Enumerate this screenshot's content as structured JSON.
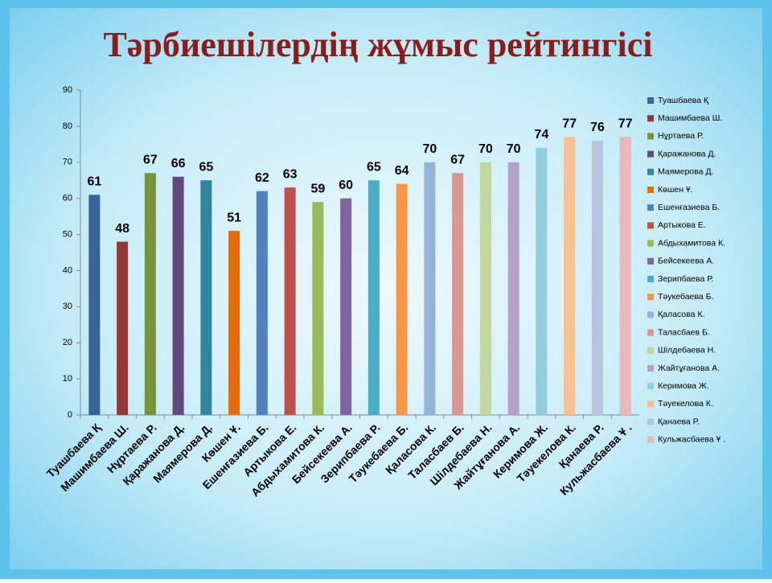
{
  "chart_data": {
    "type": "bar",
    "title": "Тәрбиешілердің   жұмыс  рейтингісі",
    "categories": [
      "Туашбаева Қ",
      "Машимбаева  Ш.",
      "Нұртаева Р.",
      "Қаражанова  Д.",
      "Маямерова Д.",
      "Көшен Ұ.",
      "Ешенғазиева Б.",
      "Артыкова  Е.",
      "Абдыхамитова К.",
      "Бейсекеева  А.",
      "Зерипбаева Р.",
      "Тәукебаева Б.",
      "Қаласова К.",
      "Таласбаев  Б.",
      "Шілдебаева Н.",
      "Жайтұғанова А.",
      "Керимова  Ж.",
      "Тәуекелова  К.",
      "Қанаева Р.",
      "Кульжасбаева Ұ ."
    ],
    "values": [
      61,
      48,
      67,
      66,
      65,
      51,
      62,
      63,
      59,
      60,
      65,
      64,
      70,
      67,
      70,
      70,
      74,
      77,
      76,
      77
    ],
    "colors": [
      "#3b6496",
      "#953735",
      "#77933c",
      "#5f4a7b",
      "#31859c",
      "#e46c0a",
      "#4f81bd",
      "#c0504d",
      "#9bbb59",
      "#8064a2",
      "#4bacc6",
      "#f79646",
      "#95b3d7",
      "#d99694",
      "#c3d69b",
      "#b3a2c7",
      "#93cddd",
      "#fac090",
      "#b9c5e0",
      "#e6b9b8"
    ],
    "legend": [
      "Туашбаева Қ",
      "Машимбаева   Ш.",
      "Нұртаева  Р.",
      "Қаражанова  Д.",
      "Маямерова  Д.",
      "Көшен   Ұ.",
      "Ешенғазиева   Б.",
      "Артыкова   Е.",
      "Абдыхамитова  К.",
      "Бейсекеева   А.",
      "Зерипбаева  Р.",
      "Тәукебаева  Б.",
      "Қаласова  К.",
      "Таласбаев  Б.",
      "Шілдебаева  Н.",
      "Жайтұғанова  А.",
      "Керимова   Ж.",
      "Тәуекелова   К.",
      "Қанаева  Р.",
      "Кульжасбаева  Ұ ."
    ],
    "ylim": [
      0,
      90
    ],
    "yticks": [
      0,
      10,
      20,
      30,
      40,
      50,
      60,
      70,
      80,
      90
    ],
    "grid": false
  }
}
